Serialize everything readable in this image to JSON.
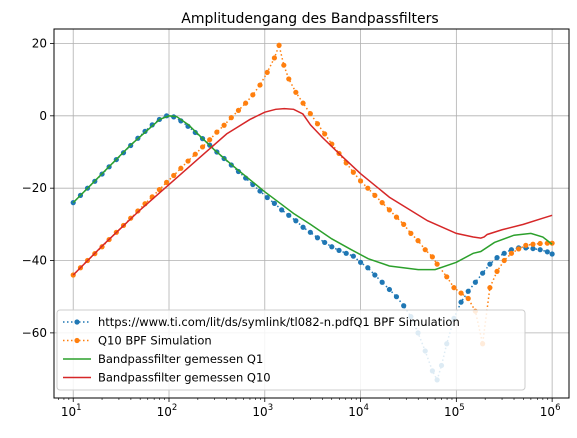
{
  "chart_data": {
    "type": "line",
    "title": "Amplitudengang des Bandpassfilters",
    "xlabel": "",
    "ylabel": "",
    "xscale": "log",
    "xlim": [
      6.3,
      1500000
    ],
    "ylim": [
      -78,
      24
    ],
    "grid": true,
    "legend_position": "lower-left",
    "x_tick_labels": [
      {
        "base": "10",
        "exp": "1"
      },
      {
        "base": "10",
        "exp": "2"
      },
      {
        "base": "10",
        "exp": "3"
      },
      {
        "base": "10",
        "exp": "4"
      },
      {
        "base": "10",
        "exp": "5"
      },
      {
        "base": "10",
        "exp": "6"
      }
    ],
    "y_tick_labels": [
      "−60",
      "−40",
      "−20",
      "0",
      "20"
    ],
    "series": [
      {
        "name": "https://www.ti.com/lit/ds/symlink/tl082-n.pdfQ1 BPF Simulation",
        "color": "#1f77b4",
        "style": "dotted-markers",
        "points": [
          [
            10,
            -24
          ],
          [
            11.9,
            -22
          ],
          [
            14.1,
            -20
          ],
          [
            16.8,
            -18.1
          ],
          [
            20,
            -16.1
          ],
          [
            23.7,
            -14.1
          ],
          [
            28.2,
            -12.1
          ],
          [
            33.5,
            -10.2
          ],
          [
            39.8,
            -8.2
          ],
          [
            47.3,
            -6.2
          ],
          [
            56.2,
            -4.3
          ],
          [
            66.8,
            -2.5
          ],
          [
            79.4,
            -1
          ],
          [
            94.4,
            0
          ],
          [
            112,
            -0.3
          ],
          [
            133,
            -1.4
          ],
          [
            158,
            -2.9
          ],
          [
            188,
            -4.6
          ],
          [
            224,
            -6.3
          ],
          [
            266,
            -8.1
          ],
          [
            316,
            -10
          ],
          [
            376,
            -11.8
          ],
          [
            447,
            -13.6
          ],
          [
            531,
            -15.4
          ],
          [
            631,
            -17.2
          ],
          [
            750,
            -19
          ],
          [
            891,
            -20.8
          ],
          [
            1060,
            -22.6
          ],
          [
            1260,
            -24.2
          ],
          [
            1500,
            -26
          ],
          [
            1780,
            -27.5
          ],
          [
            2110,
            -29
          ],
          [
            2510,
            -30.8
          ],
          [
            2990,
            -32.2
          ],
          [
            3550,
            -33.7
          ],
          [
            4220,
            -35
          ],
          [
            5010,
            -36.2
          ],
          [
            5960,
            -37.2
          ],
          [
            7080,
            -38
          ],
          [
            8410,
            -38.8
          ],
          [
            10000,
            -40.5
          ],
          [
            11900,
            -42
          ],
          [
            14100,
            -44
          ],
          [
            16800,
            -46
          ],
          [
            20000,
            -48
          ],
          [
            23700,
            -50
          ],
          [
            28200,
            -52.5
          ],
          [
            33500,
            -55.5
          ],
          [
            39800,
            -60
          ],
          [
            47300,
            -65
          ],
          [
            56200,
            -70.5
          ],
          [
            63000,
            -73
          ],
          [
            70000,
            -69
          ],
          [
            79400,
            -63
          ],
          [
            94400,
            -56
          ],
          [
            112000,
            -51.5
          ],
          [
            133000,
            -48.5
          ],
          [
            158000,
            -46
          ],
          [
            188000,
            -43.5
          ],
          [
            224000,
            -41
          ],
          [
            266000,
            -39.2
          ],
          [
            316000,
            -38
          ],
          [
            376000,
            -37
          ],
          [
            447000,
            -36.5
          ],
          [
            531000,
            -36.5
          ],
          [
            631000,
            -36.7
          ],
          [
            750000,
            -37
          ],
          [
            891000,
            -37.6
          ],
          [
            1000000,
            -38.2
          ]
        ]
      },
      {
        "name": "Q10 BPF Simulation",
        "color": "#ff7f0e",
        "style": "dotted-markers",
        "points": [
          [
            10,
            -44
          ],
          [
            11.9,
            -42
          ],
          [
            14.1,
            -40
          ],
          [
            16.8,
            -38.1
          ],
          [
            20,
            -36.2
          ],
          [
            23.7,
            -34.2
          ],
          [
            28.2,
            -32.2
          ],
          [
            33.5,
            -30.3
          ],
          [
            39.8,
            -28.3
          ],
          [
            47.3,
            -26.3
          ],
          [
            56.2,
            -24.3
          ],
          [
            66.8,
            -22.4
          ],
          [
            79.4,
            -20.4
          ],
          [
            94.4,
            -18.4
          ],
          [
            112,
            -16.5
          ],
          [
            133,
            -14.5
          ],
          [
            158,
            -12.5
          ],
          [
            188,
            -10.6
          ],
          [
            224,
            -8.6
          ],
          [
            266,
            -6.6
          ],
          [
            316,
            -4.5
          ],
          [
            376,
            -2.6
          ],
          [
            447,
            -0.5
          ],
          [
            531,
            1.5
          ],
          [
            631,
            3.5
          ],
          [
            750,
            5.8
          ],
          [
            891,
            8.5
          ],
          [
            1060,
            12
          ],
          [
            1260,
            16
          ],
          [
            1410,
            19.5
          ],
          [
            1580,
            14
          ],
          [
            1780,
            10.2
          ],
          [
            2110,
            6.5
          ],
          [
            2510,
            3.5
          ],
          [
            2990,
            0.6
          ],
          [
            3550,
            -2.2
          ],
          [
            4220,
            -5
          ],
          [
            5010,
            -7.8
          ],
          [
            5960,
            -10.4
          ],
          [
            7080,
            -13
          ],
          [
            8410,
            -15.6
          ],
          [
            10000,
            -18
          ],
          [
            11900,
            -20
          ],
          [
            14100,
            -22
          ],
          [
            16800,
            -24
          ],
          [
            20000,
            -26
          ],
          [
            23700,
            -28
          ],
          [
            28200,
            -30
          ],
          [
            33500,
            -32.5
          ],
          [
            39800,
            -34.5
          ],
          [
            47300,
            -37
          ],
          [
            56200,
            -39
          ],
          [
            63000,
            -41
          ],
          [
            79400,
            -44.5
          ],
          [
            94400,
            -47.5
          ],
          [
            112000,
            -49
          ],
          [
            133000,
            -50.5
          ],
          [
            158000,
            -54
          ],
          [
            188000,
            -63
          ],
          [
            224000,
            -47.5
          ],
          [
            266000,
            -43
          ],
          [
            316000,
            -40
          ],
          [
            376000,
            -38
          ],
          [
            447000,
            -36.8
          ],
          [
            531000,
            -35.8
          ],
          [
            631000,
            -35.5
          ],
          [
            750000,
            -35.3
          ],
          [
            891000,
            -35.2
          ],
          [
            1000000,
            -35.2
          ]
        ]
      },
      {
        "name": "Bandpassfilter gemessen Q1",
        "color": "#2ca02c",
        "style": "solid",
        "points": [
          [
            10,
            -24
          ],
          [
            20,
            -16
          ],
          [
            40,
            -8
          ],
          [
            80,
            -1
          ],
          [
            100,
            0
          ],
          [
            120,
            -0.2
          ],
          [
            160,
            -2.5
          ],
          [
            200,
            -5
          ],
          [
            300,
            -9.5
          ],
          [
            500,
            -14.5
          ],
          [
            1000,
            -21
          ],
          [
            1500,
            -24.5
          ],
          [
            2000,
            -27
          ],
          [
            3000,
            -30
          ],
          [
            5000,
            -34
          ],
          [
            8000,
            -37
          ],
          [
            12000,
            -39.5
          ],
          [
            20000,
            -41.5
          ],
          [
            40000,
            -42.5
          ],
          [
            60000,
            -42.5
          ],
          [
            100000,
            -40.5
          ],
          [
            150000,
            -38
          ],
          [
            180000,
            -37.5
          ],
          [
            250000,
            -35
          ],
          [
            400000,
            -33
          ],
          [
            600000,
            -32.5
          ],
          [
            800000,
            -33.5
          ],
          [
            1000000,
            -35.5
          ]
        ]
      },
      {
        "name": "Bandpassfilter gemessen Q10",
        "color": "#d62728",
        "style": "solid",
        "points": [
          [
            10,
            -44
          ],
          [
            20,
            -36
          ],
          [
            50,
            -26
          ],
          [
            100,
            -19
          ],
          [
            200,
            -12
          ],
          [
            400,
            -5
          ],
          [
            700,
            -1
          ],
          [
            1000,
            1
          ],
          [
            1300,
            1.8
          ],
          [
            1600,
            2
          ],
          [
            2000,
            1.8
          ],
          [
            2500,
            0.5
          ],
          [
            3000,
            -2.5
          ],
          [
            4000,
            -6
          ],
          [
            6000,
            -10.5
          ],
          [
            10000,
            -16
          ],
          [
            20000,
            -22.5
          ],
          [
            50000,
            -29
          ],
          [
            100000,
            -32.5
          ],
          [
            150000,
            -33.5
          ],
          [
            180000,
            -33.8
          ],
          [
            195000,
            -33.5
          ],
          [
            210000,
            -32.8
          ],
          [
            300000,
            -31.5
          ],
          [
            500000,
            -30
          ],
          [
            800000,
            -28.3
          ],
          [
            1000000,
            -27.5
          ]
        ]
      }
    ]
  }
}
